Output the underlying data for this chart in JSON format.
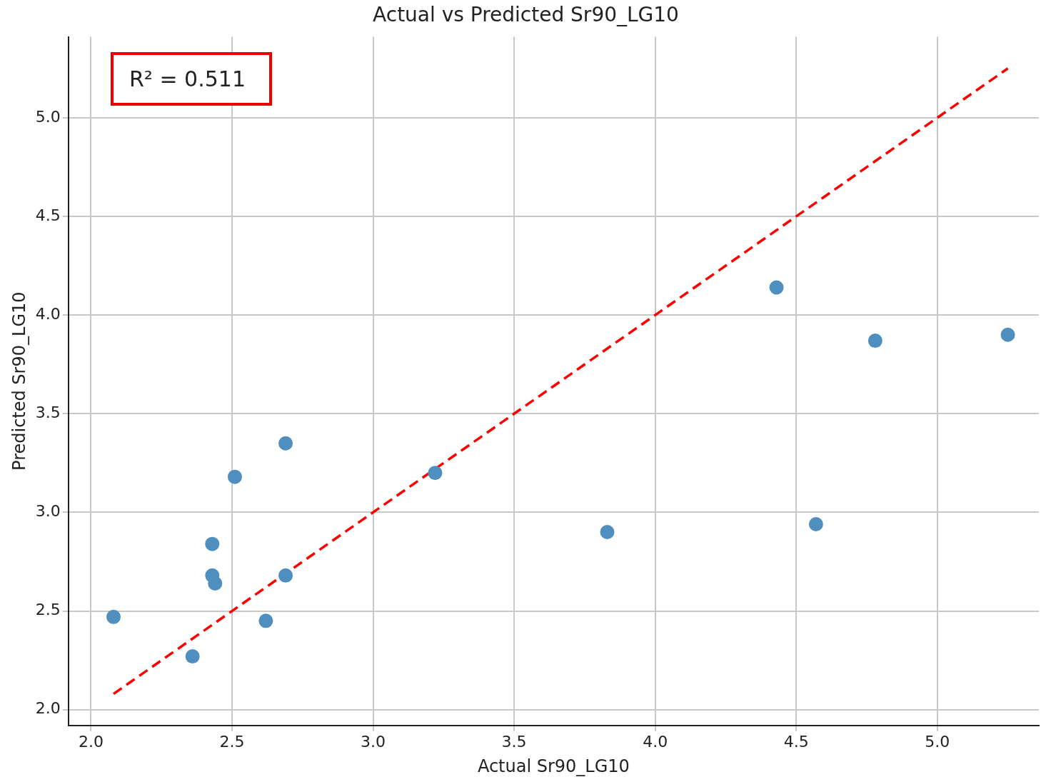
{
  "chart_data": {
    "type": "scatter",
    "title": "Actual vs Predicted Sr90_LG10",
    "xlabel": "Actual Sr90_LG10",
    "ylabel": "Predicted Sr90_LG10",
    "annotations": [
      "R² = 0.511"
    ],
    "xlim": [
      1.92,
      5.36
    ],
    "ylim": [
      1.92,
      5.41
    ],
    "xticks": [
      {
        "value": 2,
        "label": "2.0"
      },
      {
        "value": 2.5,
        "label": "2.5"
      },
      {
        "value": 3,
        "label": "3.0"
      },
      {
        "value": 3.5,
        "label": "3.5"
      },
      {
        "value": 4,
        "label": "4.0"
      },
      {
        "value": 4.5,
        "label": "4.5"
      },
      {
        "value": 5,
        "label": "5.0"
      }
    ],
    "yticks": [
      {
        "value": 2,
        "label": "2.0"
      },
      {
        "value": 2.5,
        "label": "2.5"
      },
      {
        "value": 3,
        "label": "3.0"
      },
      {
        "value": 3.5,
        "label": "3.5"
      },
      {
        "value": 4,
        "label": "4.0"
      },
      {
        "value": 4.5,
        "label": "4.5"
      },
      {
        "value": 5,
        "label": "5.0"
      }
    ],
    "grid": true,
    "marker": "circle",
    "series": [
      {
        "color": "#4f8fc0",
        "x": [
          2.08,
          2.36,
          2.43,
          2.43,
          2.44,
          2.51,
          2.62,
          2.69,
          2.69,
          3.22,
          3.83,
          4.43,
          4.57,
          4.78,
          5.25
        ],
        "values": [
          2.47,
          2.27,
          2.68,
          2.84,
          2.64,
          3.18,
          2.45,
          3.35,
          2.68,
          3.2,
          2.9,
          4.14,
          2.94,
          3.87,
          3.9
        ]
      },
      {
        "type": "line",
        "color": "#ff0000",
        "line_style": "dashed",
        "marker": "none",
        "x": [
          2.08,
          5.25
        ],
        "values": [
          2.08,
          5.25
        ]
      }
    ]
  }
}
